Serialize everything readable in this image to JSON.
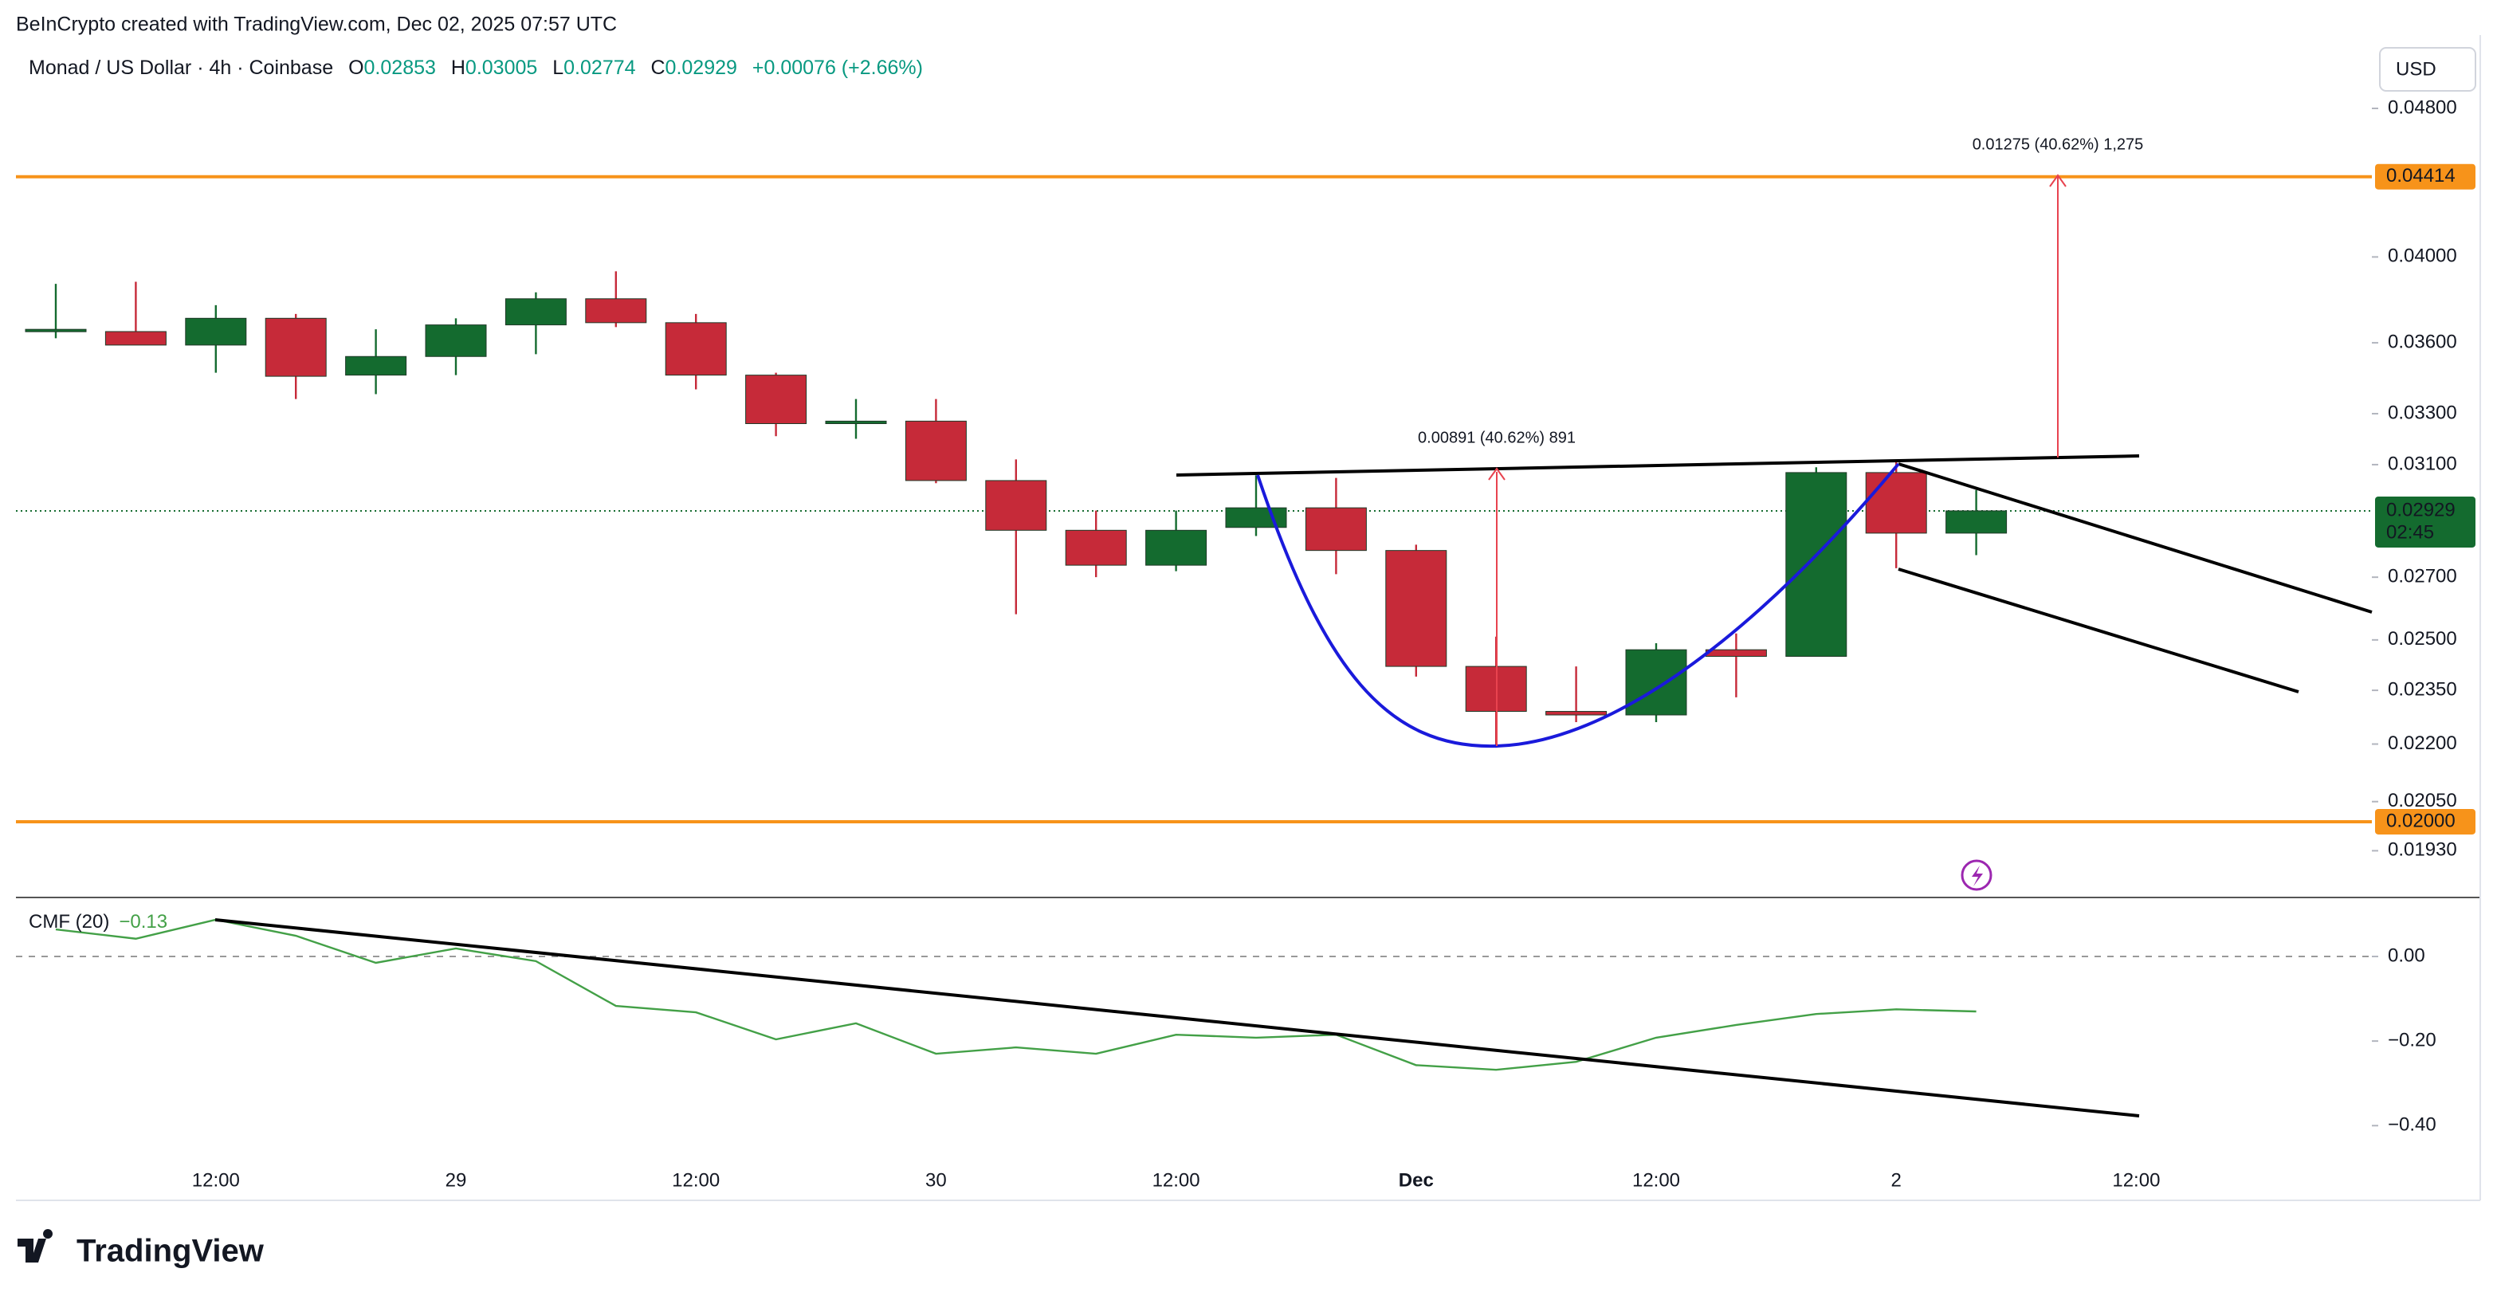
{
  "header": {
    "credit": "BeInCrypto created with TradingView.com, Dec 02, 2025 07:57 UTC",
    "symbol": "Monad / US Dollar · 4h · Coinbase",
    "legend": [
      {
        "key": "O",
        "value": "0.02853"
      },
      {
        "key": "H",
        "value": "0.03005"
      },
      {
        "key": "L",
        "value": "0.02774"
      },
      {
        "key": "C",
        "value": "0.02929"
      }
    ],
    "change": "+0.00076 (+2.66%)"
  },
  "chart_data": [
    {
      "type": "candlestick",
      "currency": "USD",
      "log_scale": true,
      "categories": [
        null,
        null,
        "12:00",
        null,
        null,
        "29",
        null,
        null,
        "12:00",
        null,
        null,
        "30",
        null,
        null,
        "12:00",
        null,
        null,
        "Dec",
        null,
        null,
        "12:00",
        null,
        null,
        "2",
        null,
        null,
        "12:00",
        null,
        null
      ],
      "open": [
        0.0365,
        0.0365,
        0.0359,
        0.0371,
        0.0346,
        0.0354,
        0.0368,
        0.038,
        0.0369,
        0.0346,
        0.0326,
        0.0327,
        0.0304,
        0.0286,
        0.0274,
        0.0287,
        0.0294,
        0.0279,
        0.0242,
        0.0229,
        0.0228,
        0.0247,
        0.0245,
        0.0307,
        0.0285,
        null,
        null,
        null,
        null
      ],
      "high": [
        0.0387,
        0.0388,
        0.0377,
        0.0373,
        0.0366,
        0.0371,
        0.0383,
        0.0393,
        0.0373,
        0.0347,
        0.0336,
        0.0336,
        0.0312,
        0.0293,
        0.0293,
        0.0306,
        0.0305,
        0.0281,
        0.0251,
        0.0242,
        0.0249,
        0.0252,
        0.0309,
        0.0311,
        0.03005,
        null,
        null,
        null,
        null
      ],
      "low": [
        0.0362,
        0.0359,
        0.0347,
        0.0336,
        0.0338,
        0.0346,
        0.0355,
        0.0367,
        0.034,
        0.0321,
        0.032,
        0.0303,
        0.0258,
        0.027,
        0.0272,
        0.0284,
        0.0271,
        0.0239,
        0.0219,
        0.0226,
        0.0226,
        0.0233,
        0.0245,
        0.0273,
        0.02774,
        null,
        null,
        null,
        null
      ],
      "close": [
        0.0366,
        0.0359,
        0.0371,
        0.03455,
        0.0354,
        0.0368,
        0.038,
        0.0369,
        0.0346,
        0.0326,
        0.0327,
        0.0304,
        0.0286,
        0.0274,
        0.0286,
        0.0294,
        0.0279,
        0.0242,
        0.0229,
        0.0228,
        0.0247,
        0.0245,
        0.0307,
        0.0285,
        0.02929,
        null,
        null,
        null,
        null
      ],
      "colors": {
        "up": "#146b2f",
        "down": "#c62a39"
      },
      "ylim": [
        0.01826,
        0.05252
      ],
      "yticks": [
        {
          "value": 0.048,
          "label": "0.04800"
        },
        {
          "value": 0.04,
          "label": "0.04000"
        },
        {
          "value": 0.036,
          "label": "0.03600"
        },
        {
          "value": 0.033,
          "label": "0.03300"
        },
        {
          "value": 0.031,
          "label": "0.03100"
        },
        {
          "value": 0.027,
          "label": "0.02700"
        },
        {
          "value": 0.025,
          "label": "0.02500"
        },
        {
          "value": 0.0235,
          "label": "0.02350"
        },
        {
          "value": 0.022,
          "label": "0.02200"
        },
        {
          "value": 0.0205,
          "label": "0.02050"
        },
        {
          "value": 0.0193,
          "label": "0.01930"
        }
      ],
      "price_lines": [
        {
          "value": 0.04414,
          "label": "0.04414",
          "color": "#f7931a"
        },
        {
          "value": 0.02,
          "label": "0.02000",
          "color": "#f7931a"
        }
      ],
      "last_price": {
        "value": 0.02929,
        "label": "0.02929",
        "countdown": "02:45",
        "color": "#146b2f"
      },
      "annotations": [
        "0.00891 (40.62%) 891",
        "0.01275 (40.62%) 1,275"
      ]
    },
    {
      "type": "line",
      "title": "CMF (20)",
      "color": "#43a047",
      "values": [
        0.064,
        0.042,
        0.087,
        0.049,
        -0.015,
        0.019,
        -0.011,
        -0.117,
        -0.132,
        -0.196,
        -0.158,
        -0.23,
        -0.215,
        -0.23,
        -0.185,
        -0.192,
        -0.185,
        -0.257,
        -0.268,
        -0.249,
        -0.192,
        -0.162,
        -0.136,
        -0.125,
        -0.13,
        null,
        null,
        null,
        null
      ],
      "current": {
        "value": -0.13,
        "label": "−0.13"
      },
      "ylim": [
        -0.49,
        0.132
      ],
      "yticks": [
        {
          "value": 0,
          "label": "0.00"
        },
        {
          "value": -0.2,
          "label": "−0.20"
        },
        {
          "value": -0.4,
          "label": "−0.40"
        }
      ]
    }
  ],
  "footer": {
    "brand": "TradingView"
  }
}
